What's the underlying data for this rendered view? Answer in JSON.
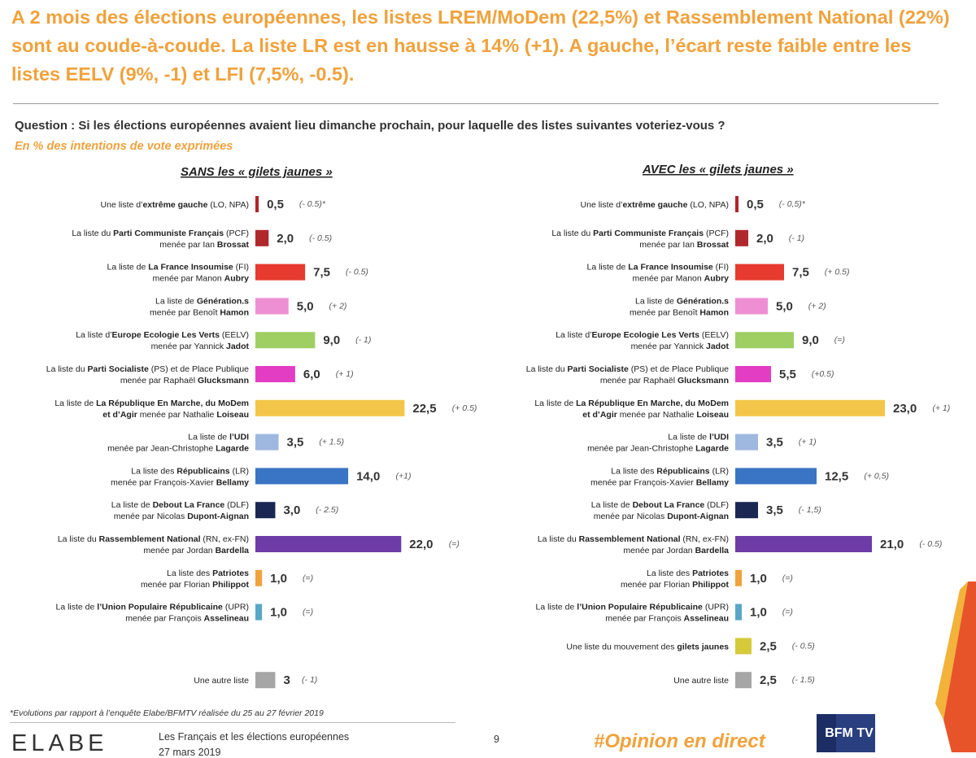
{
  "headline": "A 2 mois des élections européennes, les listes LREM/MoDem (22,5%) et Rassemblement National (22%) sont au coude-à-coude. La liste LR est en hausse à 14% (+1). A gauche, l’écart reste faible entre les listes EELV (9%, -1) et LFI (7,5%, -0.5).",
  "question": "Question : Si les élections européennes avaient lieu dimanche prochain, pour laquelle des listes suivantes voteriez-vous ?",
  "unit_note": "En % des intentions de vote exprimées",
  "footnote": "*Evolutions par rapport à l’enquête Elabe/BFMTV réalisée du 25 au 27 février 2019",
  "footer": {
    "logo": "ELABE",
    "title": "Les Français et les élections européennes",
    "date": "27 mars 2019",
    "page": "9",
    "hashtag": "#Opinion en direct",
    "bfm_logo": "BFM TV"
  },
  "colors": {
    "accent": "#f0a23c",
    "extreme_gauche": "#b0272c",
    "pcf": "#b0272c",
    "lfi": "#e63b2e",
    "generation_s": "#ef8fd3",
    "eelv": "#9fcf63",
    "ps": "#e33dc4",
    "lrem": "#f3c64a",
    "udi": "#9fb8e0",
    "lr": "#3a74c4",
    "dlf": "#1b2753",
    "rn": "#6d3ca6",
    "patriotes": "#f0a23c",
    "upr": "#5aa6c8",
    "gilets_jaunes": "#d6c93a",
    "autre": "#a6a6a6"
  },
  "chart_data": [
    {
      "type": "bar",
      "title": "SANS les « gilets jaunes »",
      "xlabel": "",
      "ylabel": "",
      "xlim": [
        0,
        25
      ],
      "categories": [
        [
          "Une liste d’",
          "extrême gauche",
          " (LO, NPA)"
        ],
        [
          "La liste du ",
          "Parti Communiste Français",
          " (PCF)",
          "menée par Ian ",
          "Brossat"
        ],
        [
          "La liste de ",
          "La France Insoumise",
          " (FI)",
          "menée par Manon ",
          "Aubry"
        ],
        [
          "La liste de ",
          "Génération.s",
          "",
          "menée par Benoît ",
          "Hamon"
        ],
        [
          "La liste d’",
          "Europe Ecologie Les Verts",
          " (EELV)",
          "menée par Yannick ",
          "Jadot"
        ],
        [
          "La liste du ",
          "Parti Socialiste",
          " (PS) et de Place Publique",
          "menée par Raphaël ",
          "Glucksmann"
        ],
        [
          "La liste de ",
          "La République En Marche, du MoDem",
          "",
          "",
          "et d’Agir menée par Nathalie Loiseau"
        ],
        [
          "La liste de ",
          "l’UDI",
          "",
          "menée par Jean-Christophe ",
          "Lagarde"
        ],
        [
          "La liste des ",
          "Républicains",
          " (LR)",
          "menée par François-Xavier ",
          "Bellamy"
        ],
        [
          "La liste de ",
          "Debout La France",
          " (DLF)",
          "menée par Nicolas ",
          "Dupont-Aignan"
        ],
        [
          "La liste du ",
          "Rassemblement National",
          " (RN, ex-FN)",
          "menée par Jordan ",
          "Bardella"
        ],
        [
          "La liste des ",
          "Patriotes",
          "",
          "menée par Florian ",
          "Philippot"
        ],
        [
          "La liste de ",
          "l’Union Populaire Républicaine",
          " (UPR)",
          "menée par François ",
          "Asselineau"
        ],
        [
          "Une autre liste",
          "",
          ""
        ]
      ],
      "keys": [
        "extreme_gauche",
        "pcf",
        "lfi",
        "generation_s",
        "eelv",
        "ps",
        "lrem",
        "udi",
        "lr",
        "dlf",
        "rn",
        "patriotes",
        "upr",
        "autre"
      ],
      "values": [
        0.5,
        2.0,
        7.5,
        5.0,
        9.0,
        6.0,
        22.5,
        3.5,
        14.0,
        3.0,
        22.0,
        1.0,
        1.0,
        3
      ],
      "value_labels": [
        "0,5",
        "2,0",
        "7,5",
        "5,0",
        "9,0",
        "6,0",
        "22,5",
        "3,5",
        "14,0",
        "3,0",
        "22,0",
        "1,0",
        "1,0",
        "3"
      ],
      "evolutions": [
        "(- 0.5)*",
        "(- 0.5)",
        "(- 0.5)",
        "(+ 2)",
        "(- 1)",
        "(+ 1)",
        "(+ 0.5)",
        "(+ 1.5)",
        "(+1)",
        "(- 2.5)",
        "(=)",
        "(=)",
        "(=)",
        "(- 1)"
      ],
      "rows": [
        0,
        1,
        2,
        3,
        4,
        5,
        6,
        7,
        8,
        9,
        10,
        11,
        12,
        14
      ]
    },
    {
      "type": "bar",
      "title": "AVEC les « gilets jaunes »",
      "xlabel": "",
      "ylabel": "",
      "xlim": [
        0,
        25
      ],
      "categories": [
        [
          "Une liste d’",
          "extrême gauche",
          " (LO, NPA)"
        ],
        [
          "La liste du ",
          "Parti Communiste Français",
          " (PCF)",
          "menée par Ian ",
          "Brossat"
        ],
        [
          "La liste de ",
          "La France Insoumise",
          " (FI)",
          "menée par Manon ",
          "Aubry"
        ],
        [
          "La liste de ",
          "Génération.s",
          "",
          "menée par Benoît ",
          "Hamon"
        ],
        [
          "La liste d’",
          "Europe Ecologie Les Verts",
          " (EELV)",
          "menée par Yannick ",
          "Jadot"
        ],
        [
          "La liste du ",
          "Parti Socialiste",
          " (PS) et de Place Publique",
          "menée par Raphaël ",
          "Glucksmann"
        ],
        [
          "La liste de ",
          "La République En Marche, du MoDem",
          "",
          "",
          "et d’Agir menée par Nathalie Loiseau"
        ],
        [
          "La liste de ",
          "l’UDI",
          "",
          "menée par Jean-Christophe ",
          "Lagarde"
        ],
        [
          "La liste des ",
          "Républicains",
          " (LR)",
          "menée par François-Xavier ",
          "Bellamy"
        ],
        [
          "La liste de ",
          "Debout La France",
          " (DLF)",
          "menée par Nicolas ",
          "Dupont-Aignan"
        ],
        [
          "La liste du ",
          "Rassemblement National",
          " (RN, ex-FN)",
          "menée par Jordan ",
          "Bardella"
        ],
        [
          "La liste des ",
          "Patriotes",
          "",
          "menée par Florian ",
          "Philippot"
        ],
        [
          "La liste de ",
          "l’Union Populaire Républicaine",
          " (UPR)",
          "menée par François ",
          "Asselineau"
        ],
        [
          "Une liste du mouvement des ",
          "gilets jaunes",
          ""
        ],
        [
          "Une autre liste",
          "",
          ""
        ]
      ],
      "keys": [
        "extreme_gauche",
        "pcf",
        "lfi",
        "generation_s",
        "eelv",
        "ps",
        "lrem",
        "udi",
        "lr",
        "dlf",
        "rn",
        "patriotes",
        "upr",
        "gilets_jaunes",
        "autre"
      ],
      "values": [
        0.5,
        2.0,
        7.5,
        5.0,
        9.0,
        5.5,
        23.0,
        3.5,
        12.5,
        3.5,
        21.0,
        1.0,
        1.0,
        2.5,
        2.5
      ],
      "value_labels": [
        "0,5",
        "2,0",
        "7,5",
        "5,0",
        "9,0",
        "5,5",
        "23,0",
        "3,5",
        "12,5",
        "3,5",
        "21,0",
        "1,0",
        "1,0",
        "2,5",
        "2,5"
      ],
      "evolutions": [
        "(- 0,5)*",
        "(- 1)",
        "(+ 0.5)",
        "(+ 2)",
        "(=)",
        "(+0.5)",
        "(+ 1)",
        "(+ 1)",
        "(+ 0,5)",
        "(- 1,5)",
        "(- 0.5)",
        "(=)",
        "(=)",
        "(- 0.5)",
        "(- 1.5)"
      ],
      "rows": [
        0,
        1,
        2,
        3,
        4,
        5,
        6,
        7,
        8,
        9,
        10,
        11,
        12,
        13,
        14
      ]
    }
  ]
}
